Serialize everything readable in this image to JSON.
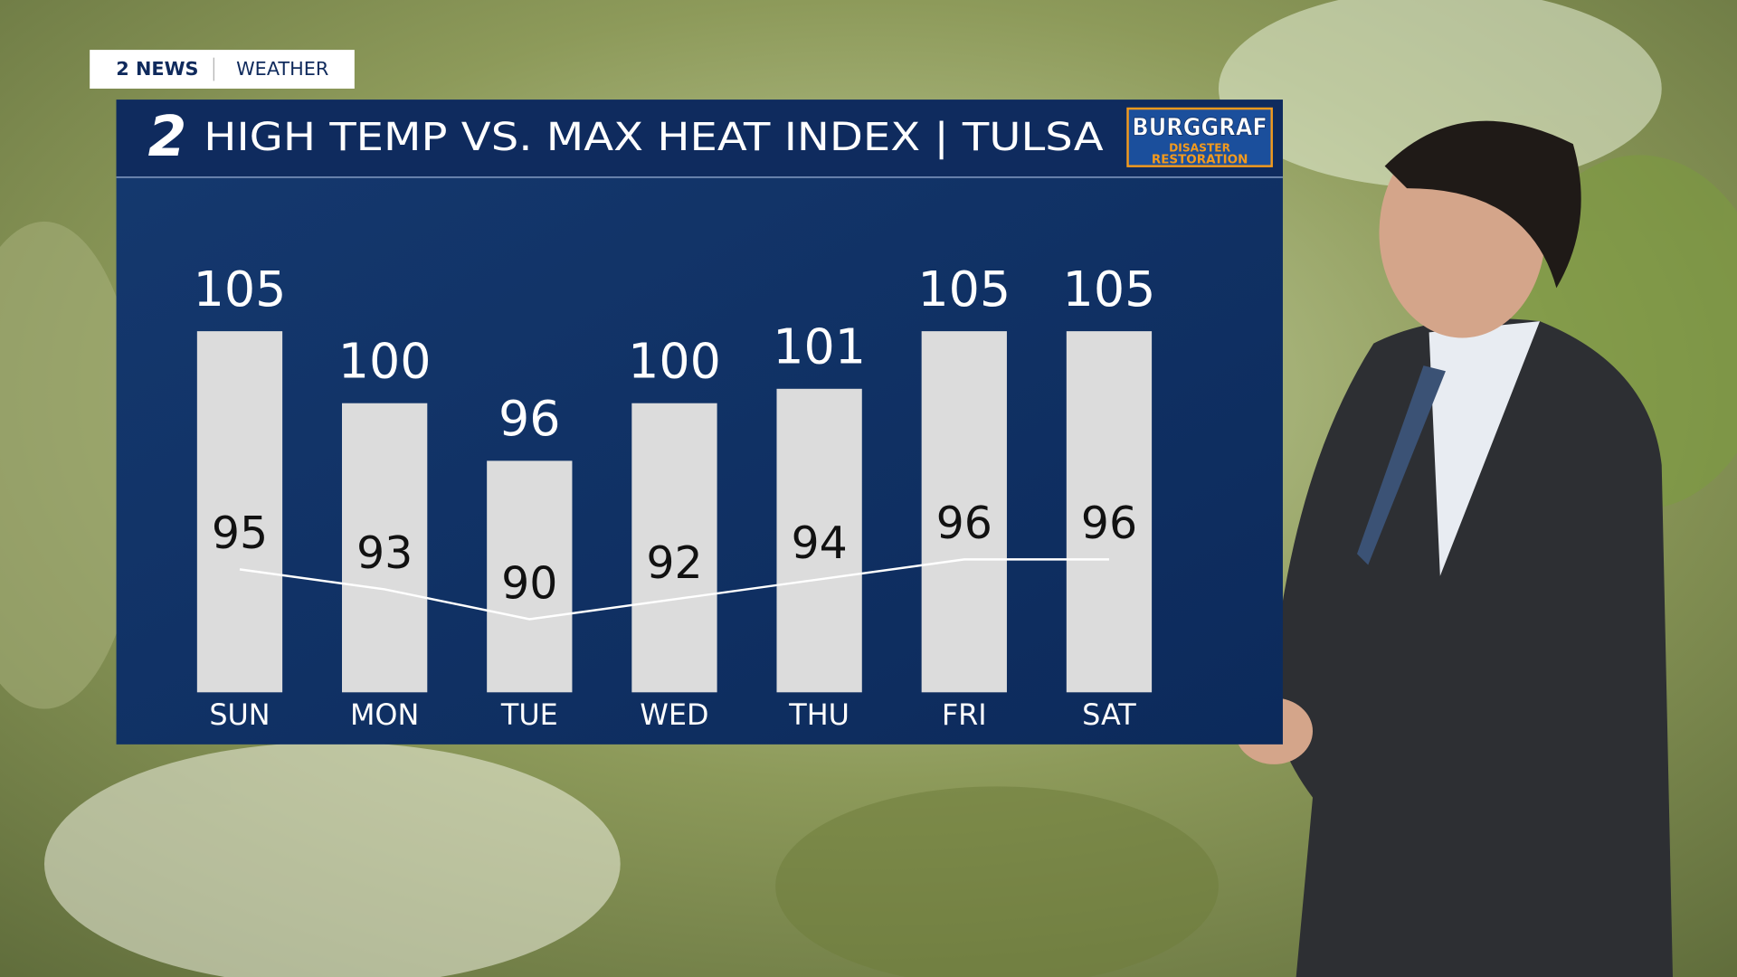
{
  "header": {
    "brand": "2 NEWS",
    "section": "WEATHER"
  },
  "sponsor": {
    "name": "BURGGRAF",
    "line1": "DISASTER",
    "line2": "RESTORATION"
  },
  "chart_data": {
    "type": "bar",
    "channel": "2",
    "title": "HIGH TEMP VS. MAX HEAT INDEX | TULSA",
    "categories": [
      "SUN",
      "MON",
      "TUE",
      "WED",
      "THU",
      "FRI",
      "SAT"
    ],
    "series": [
      {
        "type": "bar",
        "color": "#dcdcdc",
        "values": [
          105,
          100,
          96,
          100,
          101,
          105,
          105
        ]
      },
      {
        "type": "line",
        "color": "#ffffff",
        "values": [
          95,
          93,
          90,
          92,
          94,
          96,
          96
        ]
      }
    ]
  }
}
